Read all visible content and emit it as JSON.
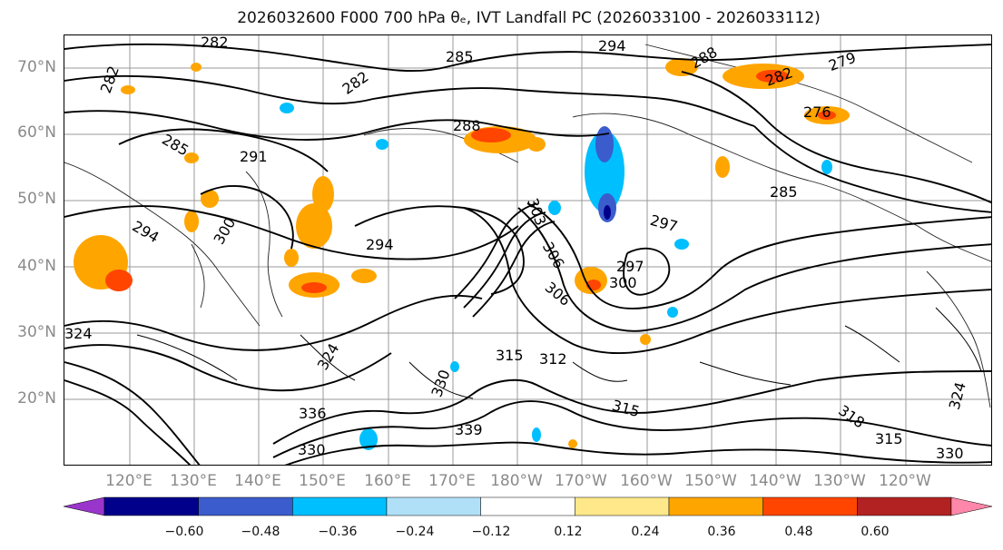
{
  "title": "2026032600 F000 700 hPa θₑ, IVT Landfall PC (2026033100 - 2026033112)",
  "lat_labels": [
    "70°N",
    "60°N",
    "50°N",
    "40°N",
    "30°N",
    "20°N"
  ],
  "lon_labels": [
    "120°E",
    "130°E",
    "140°E",
    "150°E",
    "160°E",
    "170°E",
    "180°W",
    "170°W",
    "160°W",
    "150°W",
    "140°W",
    "130°W",
    "120°W"
  ],
  "contour_labels": [
    "282",
    "282",
    "282",
    "285",
    "294",
    "288",
    "282",
    "279",
    "276",
    "285",
    "285",
    "291",
    "288",
    "294",
    "300",
    "294",
    "297",
    "297",
    "300",
    "303",
    "306",
    "306",
    "312",
    "315",
    "315",
    "318",
    "315",
    "324",
    "324",
    "330",
    "336",
    "339",
    "330",
    "324",
    "330"
  ],
  "colorbar": {
    "ticks": [
      "−0.60",
      "−0.48",
      "−0.36",
      "−0.24",
      "−0.12",
      "0.12",
      "0.24",
      "0.36",
      "0.48",
      "0.60"
    ],
    "colors": [
      "#9a35cc",
      "#00008b",
      "#3a5ccc",
      "#00bfff",
      "#b0e0f8",
      "#ffffff",
      "#ffe88a",
      "#ffa500",
      "#ff4500",
      "#b22222",
      "#ff88aa"
    ]
  }
}
